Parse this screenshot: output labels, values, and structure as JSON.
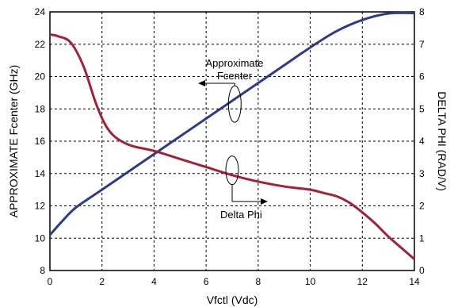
{
  "chart_data": {
    "type": "line",
    "title": "",
    "xlabel": "Vfctl (Vdc)",
    "ylabel_left": "APPROXIMATE Fcenter (GHz)",
    "ylabel_right": "DELTA PHI (RAD/V)",
    "xlim": [
      0,
      14
    ],
    "ylim_left": [
      8,
      24
    ],
    "ylim_right": [
      0,
      8
    ],
    "x_ticks": [
      "0",
      "2",
      "4",
      "6",
      "8",
      "10",
      "12",
      "14"
    ],
    "y_left_ticks": [
      "8",
      "10",
      "12",
      "14",
      "16",
      "18",
      "20",
      "22",
      "24"
    ],
    "y_right_ticks": [
      "0",
      "1",
      "2",
      "3",
      "4",
      "5",
      "6",
      "7",
      "8"
    ],
    "grid": true,
    "grid_style": "dashed",
    "series": [
      {
        "name": "Approximate Fcenter",
        "axis": "left",
        "color": "#2e3a8c",
        "x": [
          0,
          0.5,
          1,
          2,
          3,
          4,
          5,
          6,
          7,
          8,
          9,
          10,
          11,
          12,
          13,
          14
        ],
        "y": [
          10.2,
          11.1,
          11.9,
          13.0,
          14.1,
          15.2,
          16.3,
          17.4,
          18.5,
          19.6,
          20.7,
          21.8,
          22.8,
          23.5,
          23.9,
          24.1
        ]
      },
      {
        "name": "Delta Phi",
        "axis": "right",
        "color": "#a31f3a",
        "x": [
          0,
          0.3,
          0.8,
          1.3,
          1.8,
          2.3,
          3,
          4,
          5,
          6,
          7,
          8,
          9,
          10,
          10.5,
          11,
          11.5,
          12,
          12.5,
          13,
          13.5,
          14
        ],
        "y": [
          7.3,
          7.25,
          7.05,
          6.3,
          5.1,
          4.3,
          3.9,
          3.7,
          3.45,
          3.2,
          2.95,
          2.75,
          2.6,
          2.5,
          2.4,
          2.3,
          2.1,
          1.8,
          1.45,
          1.05,
          0.7,
          0.35
        ]
      }
    ],
    "annotations": [
      {
        "text_lines": [
          "Approximate",
          "Fcenter"
        ],
        "target": "Approximate Fcenter",
        "arrow": "left"
      },
      {
        "text_lines": [
          "Delta Phi"
        ],
        "target": "Delta Phi",
        "arrow": "right"
      }
    ]
  }
}
